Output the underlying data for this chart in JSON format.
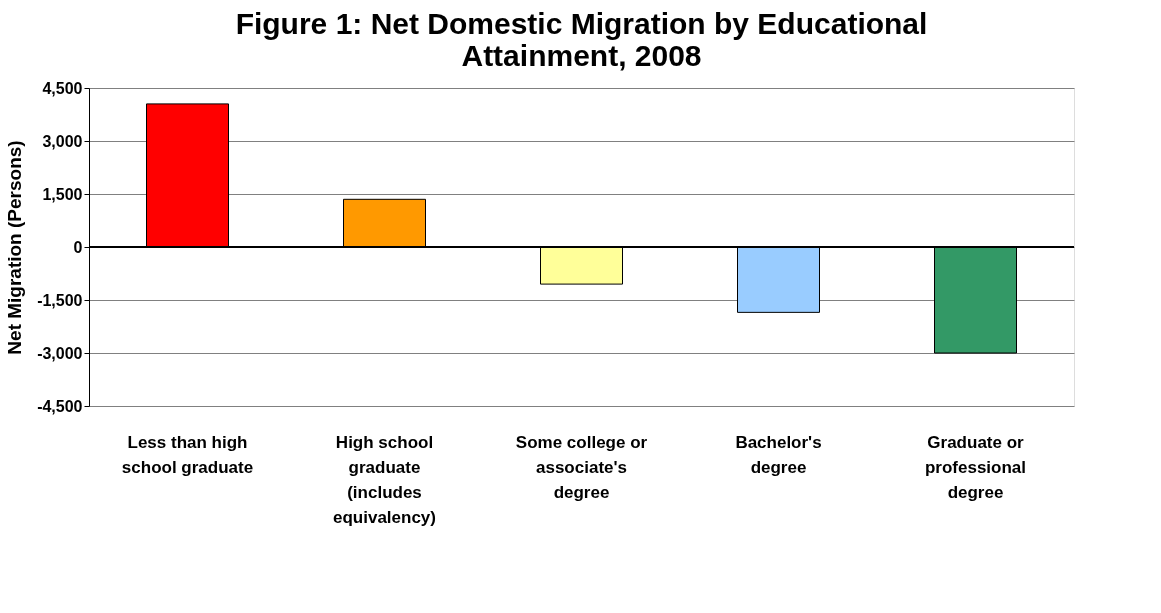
{
  "chart_data": {
    "type": "bar",
    "title": "Figure 1: Net Domestic Migration by Educational Attainment, 2008",
    "ylabel": "Net Migration (Persons)",
    "categories": [
      "Less than high school graduate",
      "High school graduate (includes equivalency)",
      "Some college or associate's degree",
      "Bachelor's degree",
      "Graduate or professional degree"
    ],
    "values": [
      4050,
      1350,
      -1050,
      -1850,
      -3000
    ],
    "colors": [
      "#ff0000",
      "#ff9900",
      "#ffff99",
      "#99ccff",
      "#339966"
    ],
    "ylim": [
      -4500,
      4500
    ],
    "yticks": [
      {
        "value": -4500,
        "label": "-4,500"
      },
      {
        "value": -3000,
        "label": "-3,000"
      },
      {
        "value": -1500,
        "label": "-1,500"
      },
      0,
      {
        "value": 1500,
        "label": "1,500"
      },
      {
        "value": 3000,
        "label": "3,000"
      },
      {
        "value": 4500,
        "label": "4,500"
      }
    ],
    "grid": "y"
  }
}
